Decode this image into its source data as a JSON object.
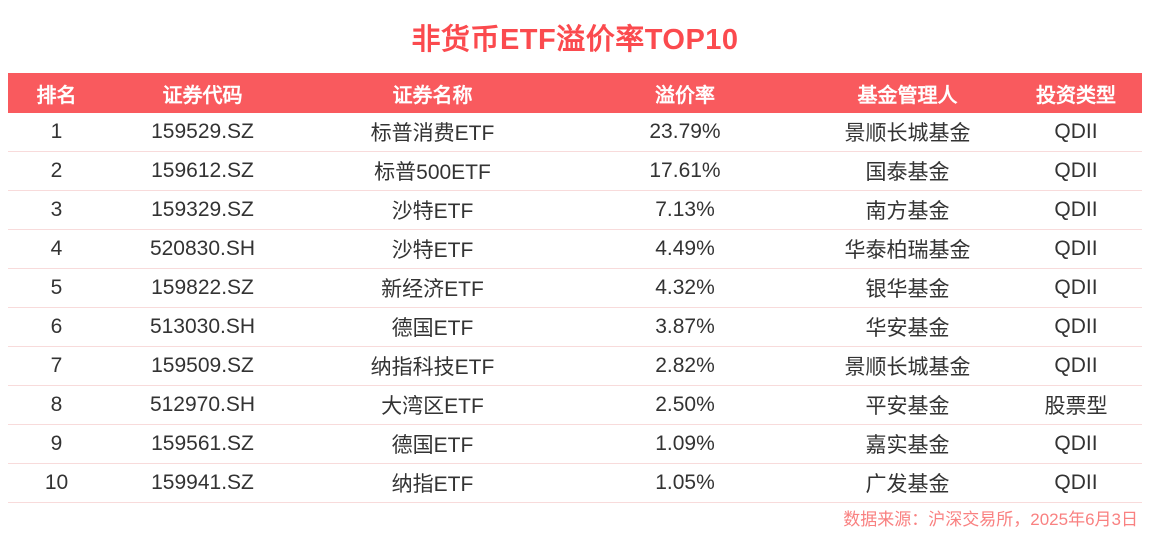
{
  "title": "非货币ETF溢价率TOP10",
  "footer": {
    "source_label": "数据来源：沪深交易所，2025年6月3日"
  },
  "colors": {
    "background": "#FFFFFF",
    "title_red": "#FB4A4E",
    "header_bg": "#F95A5E",
    "header_text": "#FFFFFF",
    "body_text": "#333333",
    "row_divider": "#F8DBDB",
    "footer_red": "#F98181"
  },
  "chart_data": {
    "type": "table",
    "title": "非货币ETF溢价率TOP10",
    "columns": [
      "排名",
      "证券代码",
      "证券名称",
      "溢价率",
      "基金管理人",
      "投资类型"
    ],
    "rows": [
      [
        "1",
        "159529.SZ",
        "标普消费ETF",
        "23.79%",
        "景顺长城基金",
        "QDII"
      ],
      [
        "2",
        "159612.SZ",
        "标普500ETF",
        "17.61%",
        "国泰基金",
        "QDII"
      ],
      [
        "3",
        "159329.SZ",
        "沙特ETF",
        "7.13%",
        "南方基金",
        "QDII"
      ],
      [
        "4",
        "520830.SH",
        "沙特ETF",
        "4.49%",
        "华泰柏瑞基金",
        "QDII"
      ],
      [
        "5",
        "159822.SZ",
        "新经济ETF",
        "4.32%",
        "银华基金",
        "QDII"
      ],
      [
        "6",
        "513030.SH",
        "德国ETF",
        "3.87%",
        "华安基金",
        "QDII"
      ],
      [
        "7",
        "159509.SZ",
        "纳指科技ETF",
        "2.82%",
        "景顺长城基金",
        "QDII"
      ],
      [
        "8",
        "512970.SH",
        "大湾区ETF",
        "2.50%",
        "平安基金",
        "股票型"
      ],
      [
        "9",
        "159561.SZ",
        "德国ETF",
        "1.09%",
        "嘉实基金",
        "QDII"
      ],
      [
        "10",
        "159941.SZ",
        "纳指ETF",
        "1.05%",
        "广发基金",
        "QDII"
      ]
    ],
    "source_note": "数据来源：沪深交易所，2025年6月3日"
  }
}
